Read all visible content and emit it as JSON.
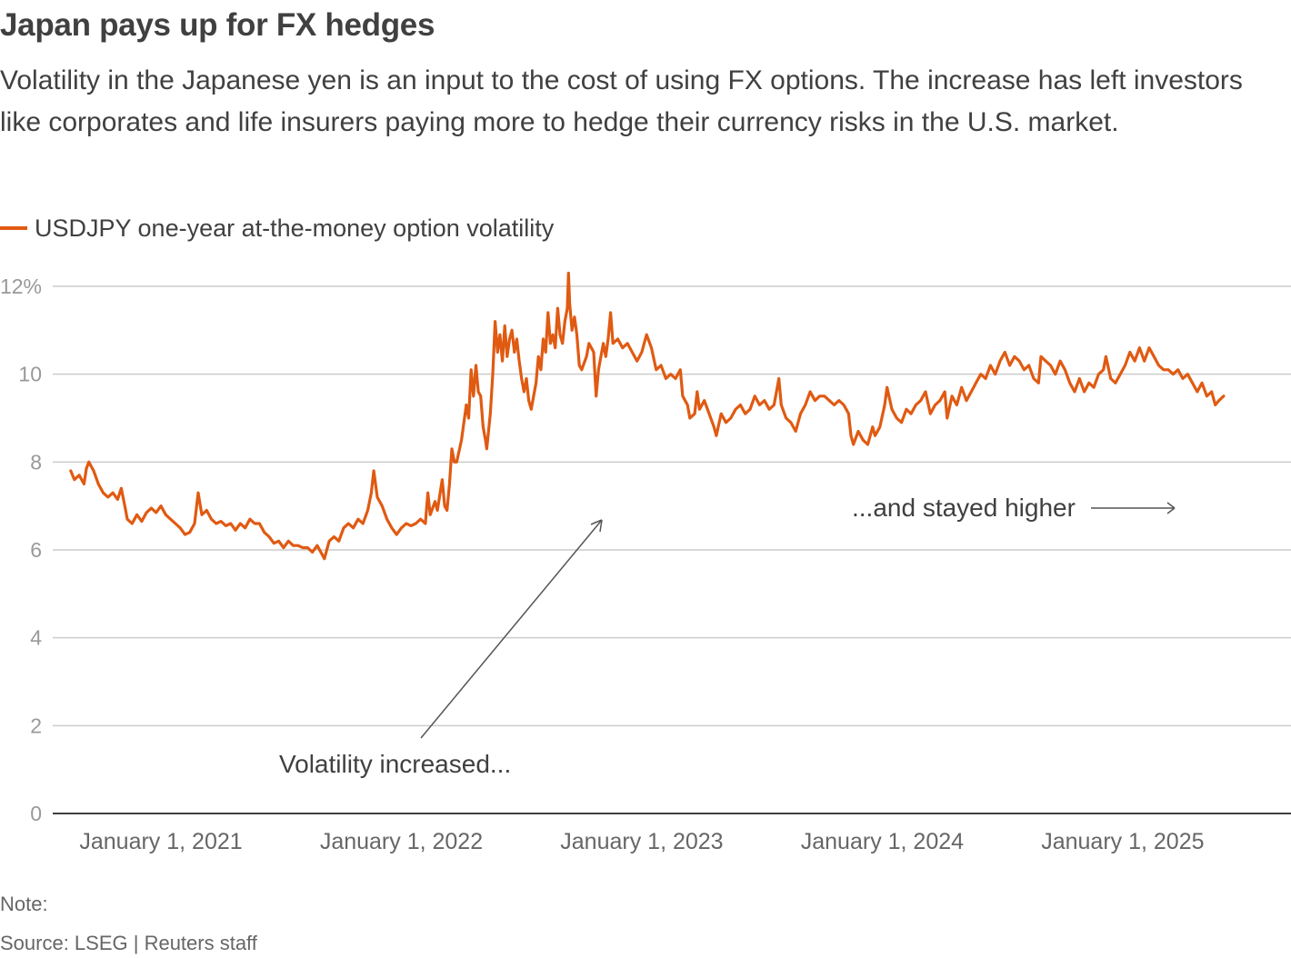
{
  "header": {
    "title": "Japan pays up for FX hedges",
    "subtitle": "Volatility in the Japanese yen is an input to the cost of using FX options. The increase has left investors like corporates and life insurers paying more to hedge their currency risks in the U.S. market."
  },
  "footer": {
    "note": "Note:",
    "source": "Source: LSEG | Reuters staff"
  },
  "colors": {
    "series": "#e05a12",
    "grid": "#cccccc",
    "axis": "#404040",
    "annotation": "#555555"
  },
  "chart_data": {
    "type": "line",
    "title": "Japan pays up for FX hedges",
    "xlabel": "",
    "ylabel": "",
    "ylim": [
      0,
      12
    ],
    "y_ticks": [
      {
        "value": 0,
        "label": "0"
      },
      {
        "value": 2,
        "label": "2"
      },
      {
        "value": 4,
        "label": "4"
      },
      {
        "value": 6,
        "label": "6"
      },
      {
        "value": 8,
        "label": "8"
      },
      {
        "value": 10,
        "label": "10"
      },
      {
        "value": 12,
        "label": "12%"
      }
    ],
    "x_range": [
      2020.55,
      2025.7
    ],
    "x_ticks": [
      {
        "value": 2021.0,
        "label": "January 1, 2021"
      },
      {
        "value": 2022.0,
        "label": "January 1, 2022"
      },
      {
        "value": 2023.0,
        "label": "January 1, 2023"
      },
      {
        "value": 2024.0,
        "label": "January 1, 2024"
      },
      {
        "value": 2025.0,
        "label": "January 1, 2025"
      }
    ],
    "grid": true,
    "legend": "top-left",
    "series": [
      {
        "name": "USDJPY one-year at-the-money option volatility",
        "points": [
          [
            2020.625,
            7.8
          ],
          [
            2020.64,
            7.6
          ],
          [
            2020.66,
            7.7
          ],
          [
            2020.68,
            7.5
          ],
          [
            2020.69,
            7.85
          ],
          [
            2020.7,
            8.0
          ],
          [
            2020.72,
            7.8
          ],
          [
            2020.74,
            7.5
          ],
          [
            2020.76,
            7.3
          ],
          [
            2020.78,
            7.2
          ],
          [
            2020.8,
            7.3
          ],
          [
            2020.82,
            7.15
          ],
          [
            2020.835,
            7.4
          ],
          [
            2020.85,
            7.0
          ],
          [
            2020.86,
            6.7
          ],
          [
            2020.88,
            6.6
          ],
          [
            2020.9,
            6.8
          ],
          [
            2020.92,
            6.65
          ],
          [
            2020.94,
            6.85
          ],
          [
            2020.96,
            6.95
          ],
          [
            2020.98,
            6.85
          ],
          [
            2021.0,
            7.0
          ],
          [
            2021.02,
            6.8
          ],
          [
            2021.04,
            6.7
          ],
          [
            2021.06,
            6.6
          ],
          [
            2021.08,
            6.5
          ],
          [
            2021.1,
            6.35
          ],
          [
            2021.12,
            6.4
          ],
          [
            2021.14,
            6.6
          ],
          [
            2021.155,
            7.3
          ],
          [
            2021.17,
            6.8
          ],
          [
            2021.19,
            6.9
          ],
          [
            2021.21,
            6.7
          ],
          [
            2021.23,
            6.6
          ],
          [
            2021.25,
            6.65
          ],
          [
            2021.27,
            6.55
          ],
          [
            2021.29,
            6.6
          ],
          [
            2021.31,
            6.45
          ],
          [
            2021.33,
            6.6
          ],
          [
            2021.35,
            6.5
          ],
          [
            2021.37,
            6.7
          ],
          [
            2021.39,
            6.6
          ],
          [
            2021.41,
            6.6
          ],
          [
            2021.43,
            6.4
          ],
          [
            2021.45,
            6.3
          ],
          [
            2021.47,
            6.15
          ],
          [
            2021.49,
            6.2
          ],
          [
            2021.51,
            6.05
          ],
          [
            2021.53,
            6.2
          ],
          [
            2021.55,
            6.1
          ],
          [
            2021.57,
            6.1
          ],
          [
            2021.59,
            6.05
          ],
          [
            2021.61,
            6.05
          ],
          [
            2021.63,
            5.95
          ],
          [
            2021.65,
            6.1
          ],
          [
            2021.67,
            5.9
          ],
          [
            2021.68,
            5.8
          ],
          [
            2021.7,
            6.2
          ],
          [
            2021.72,
            6.3
          ],
          [
            2021.74,
            6.2
          ],
          [
            2021.76,
            6.5
          ],
          [
            2021.78,
            6.6
          ],
          [
            2021.8,
            6.5
          ],
          [
            2021.82,
            6.7
          ],
          [
            2021.84,
            6.6
          ],
          [
            2021.86,
            6.9
          ],
          [
            2021.875,
            7.3
          ],
          [
            2021.885,
            7.8
          ],
          [
            2021.9,
            7.2
          ],
          [
            2021.92,
            7.0
          ],
          [
            2021.94,
            6.7
          ],
          [
            2021.96,
            6.5
          ],
          [
            2021.98,
            6.35
          ],
          [
            2022.0,
            6.5
          ],
          [
            2022.02,
            6.6
          ],
          [
            2022.04,
            6.55
          ],
          [
            2022.06,
            6.6
          ],
          [
            2022.08,
            6.7
          ],
          [
            2022.1,
            6.6
          ],
          [
            2022.11,
            7.3
          ],
          [
            2022.12,
            6.8
          ],
          [
            2022.14,
            7.1
          ],
          [
            2022.15,
            6.9
          ],
          [
            2022.17,
            7.6
          ],
          [
            2022.18,
            7.0
          ],
          [
            2022.19,
            6.9
          ],
          [
            2022.2,
            7.5
          ],
          [
            2022.21,
            8.3
          ],
          [
            2022.22,
            8.0
          ],
          [
            2022.23,
            8.0
          ],
          [
            2022.25,
            8.5
          ],
          [
            2022.27,
            9.3
          ],
          [
            2022.28,
            9.0
          ],
          [
            2022.29,
            10.1
          ],
          [
            2022.3,
            9.5
          ],
          [
            2022.31,
            10.2
          ],
          [
            2022.32,
            9.6
          ],
          [
            2022.33,
            9.5
          ],
          [
            2022.34,
            8.8
          ],
          [
            2022.35,
            8.5
          ],
          [
            2022.355,
            8.3
          ],
          [
            2022.37,
            9.1
          ],
          [
            2022.38,
            10.0
          ],
          [
            2022.39,
            11.2
          ],
          [
            2022.4,
            10.5
          ],
          [
            2022.41,
            10.9
          ],
          [
            2022.42,
            10.3
          ],
          [
            2022.43,
            11.1
          ],
          [
            2022.44,
            10.4
          ],
          [
            2022.45,
            10.8
          ],
          [
            2022.46,
            11.0
          ],
          [
            2022.47,
            10.5
          ],
          [
            2022.48,
            10.8
          ],
          [
            2022.49,
            10.3
          ],
          [
            2022.5,
            9.9
          ],
          [
            2022.51,
            9.6
          ],
          [
            2022.52,
            9.9
          ],
          [
            2022.53,
            9.4
          ],
          [
            2022.54,
            9.2
          ],
          [
            2022.56,
            9.8
          ],
          [
            2022.57,
            10.4
          ],
          [
            2022.58,
            10.1
          ],
          [
            2022.59,
            10.8
          ],
          [
            2022.6,
            10.5
          ],
          [
            2022.61,
            11.4
          ],
          [
            2022.62,
            10.7
          ],
          [
            2022.63,
            10.9
          ],
          [
            2022.64,
            10.6
          ],
          [
            2022.65,
            11.5
          ],
          [
            2022.66,
            10.9
          ],
          [
            2022.67,
            10.7
          ],
          [
            2022.68,
            11.2
          ],
          [
            2022.69,
            11.5
          ],
          [
            2022.695,
            12.3
          ],
          [
            2022.7,
            11.6
          ],
          [
            2022.71,
            11.0
          ],
          [
            2022.72,
            11.3
          ],
          [
            2022.73,
            10.9
          ],
          [
            2022.74,
            10.2
          ],
          [
            2022.75,
            10.1
          ],
          [
            2022.77,
            10.4
          ],
          [
            2022.78,
            10.7
          ],
          [
            2022.8,
            10.5
          ],
          [
            2022.81,
            9.5
          ],
          [
            2022.82,
            10.1
          ],
          [
            2022.84,
            10.7
          ],
          [
            2022.85,
            10.4
          ],
          [
            2022.86,
            10.8
          ],
          [
            2022.87,
            11.4
          ],
          [
            2022.88,
            10.7
          ],
          [
            2022.9,
            10.8
          ],
          [
            2022.92,
            10.6
          ],
          [
            2022.94,
            10.7
          ],
          [
            2022.96,
            10.5
          ],
          [
            2022.98,
            10.3
          ],
          [
            2023.0,
            10.5
          ],
          [
            2023.02,
            10.9
          ],
          [
            2023.04,
            10.6
          ],
          [
            2023.06,
            10.1
          ],
          [
            2023.08,
            10.2
          ],
          [
            2023.1,
            9.9
          ],
          [
            2023.12,
            10.0
          ],
          [
            2023.14,
            9.9
          ],
          [
            2023.16,
            10.1
          ],
          [
            2023.17,
            9.5
          ],
          [
            2023.19,
            9.3
          ],
          [
            2023.2,
            9.0
          ],
          [
            2023.22,
            9.1
          ],
          [
            2023.23,
            9.6
          ],
          [
            2023.24,
            9.2
          ],
          [
            2023.26,
            9.4
          ],
          [
            2023.28,
            9.1
          ],
          [
            2023.3,
            8.8
          ],
          [
            2023.31,
            8.6
          ],
          [
            2023.33,
            9.1
          ],
          [
            2023.35,
            8.9
          ],
          [
            2023.37,
            9.0
          ],
          [
            2023.39,
            9.2
          ],
          [
            2023.41,
            9.3
          ],
          [
            2023.43,
            9.1
          ],
          [
            2023.45,
            9.2
          ],
          [
            2023.47,
            9.5
          ],
          [
            2023.49,
            9.3
          ],
          [
            2023.51,
            9.4
          ],
          [
            2023.53,
            9.2
          ],
          [
            2023.55,
            9.3
          ],
          [
            2023.57,
            9.9
          ],
          [
            2023.58,
            9.3
          ],
          [
            2023.6,
            9.0
          ],
          [
            2023.62,
            8.9
          ],
          [
            2023.64,
            8.7
          ],
          [
            2023.66,
            9.1
          ],
          [
            2023.68,
            9.3
          ],
          [
            2023.7,
            9.6
          ],
          [
            2023.72,
            9.4
          ],
          [
            2023.74,
            9.5
          ],
          [
            2023.76,
            9.5
          ],
          [
            2023.78,
            9.4
          ],
          [
            2023.8,
            9.3
          ],
          [
            2023.82,
            9.4
          ],
          [
            2023.84,
            9.3
          ],
          [
            2023.86,
            9.1
          ],
          [
            2023.87,
            8.6
          ],
          [
            2023.88,
            8.4
          ],
          [
            2023.9,
            8.7
          ],
          [
            2023.92,
            8.5
          ],
          [
            2023.94,
            8.4
          ],
          [
            2023.96,
            8.8
          ],
          [
            2023.97,
            8.6
          ],
          [
            2023.99,
            8.8
          ],
          [
            2024.01,
            9.3
          ],
          [
            2024.02,
            9.7
          ],
          [
            2024.04,
            9.2
          ],
          [
            2024.06,
            9.0
          ],
          [
            2024.08,
            8.9
          ],
          [
            2024.1,
            9.2
          ],
          [
            2024.12,
            9.1
          ],
          [
            2024.14,
            9.3
          ],
          [
            2024.16,
            9.4
          ],
          [
            2024.18,
            9.6
          ],
          [
            2024.2,
            9.1
          ],
          [
            2024.22,
            9.3
          ],
          [
            2024.24,
            9.4
          ],
          [
            2024.26,
            9.6
          ],
          [
            2024.27,
            9.0
          ],
          [
            2024.29,
            9.5
          ],
          [
            2024.31,
            9.3
          ],
          [
            2024.33,
            9.7
          ],
          [
            2024.35,
            9.4
          ],
          [
            2024.37,
            9.6
          ],
          [
            2024.39,
            9.8
          ],
          [
            2024.41,
            10.0
          ],
          [
            2024.43,
            9.9
          ],
          [
            2024.45,
            10.2
          ],
          [
            2024.47,
            10.0
          ],
          [
            2024.49,
            10.3
          ],
          [
            2024.51,
            10.5
          ],
          [
            2024.53,
            10.2
          ],
          [
            2024.55,
            10.4
          ],
          [
            2024.57,
            10.3
          ],
          [
            2024.59,
            10.1
          ],
          [
            2024.61,
            10.2
          ],
          [
            2024.63,
            9.9
          ],
          [
            2024.65,
            9.8
          ],
          [
            2024.66,
            10.4
          ],
          [
            2024.68,
            10.3
          ],
          [
            2024.7,
            10.2
          ],
          [
            2024.72,
            10.0
          ],
          [
            2024.74,
            10.3
          ],
          [
            2024.76,
            10.1
          ],
          [
            2024.78,
            9.8
          ],
          [
            2024.8,
            9.6
          ],
          [
            2024.82,
            9.9
          ],
          [
            2024.84,
            9.6
          ],
          [
            2024.86,
            9.8
          ],
          [
            2024.88,
            9.7
          ],
          [
            2024.9,
            10.0
          ],
          [
            2024.92,
            10.1
          ],
          [
            2024.93,
            10.4
          ],
          [
            2024.95,
            9.9
          ],
          [
            2024.97,
            9.8
          ],
          [
            2024.99,
            10.0
          ],
          [
            2025.01,
            10.2
          ],
          [
            2025.03,
            10.5
          ],
          [
            2025.05,
            10.3
          ],
          [
            2025.07,
            10.6
          ],
          [
            2025.09,
            10.3
          ],
          [
            2025.11,
            10.6
          ],
          [
            2025.13,
            10.4
          ],
          [
            2025.15,
            10.2
          ],
          [
            2025.17,
            10.1
          ],
          [
            2025.19,
            10.1
          ],
          [
            2025.21,
            10.0
          ],
          [
            2025.23,
            10.1
          ],
          [
            2025.25,
            9.9
          ],
          [
            2025.27,
            10.0
          ],
          [
            2025.29,
            9.8
          ],
          [
            2025.31,
            9.6
          ],
          [
            2025.33,
            9.8
          ],
          [
            2025.35,
            9.5
          ],
          [
            2025.37,
            9.6
          ],
          [
            2025.385,
            9.3
          ],
          [
            2025.4,
            9.4
          ],
          [
            2025.42,
            9.5
          ]
        ]
      }
    ],
    "annotations": [
      {
        "text": "Volatility increased...",
        "arrow": "up-right"
      },
      {
        "text": "...and stayed higher",
        "arrow": "right"
      }
    ]
  }
}
